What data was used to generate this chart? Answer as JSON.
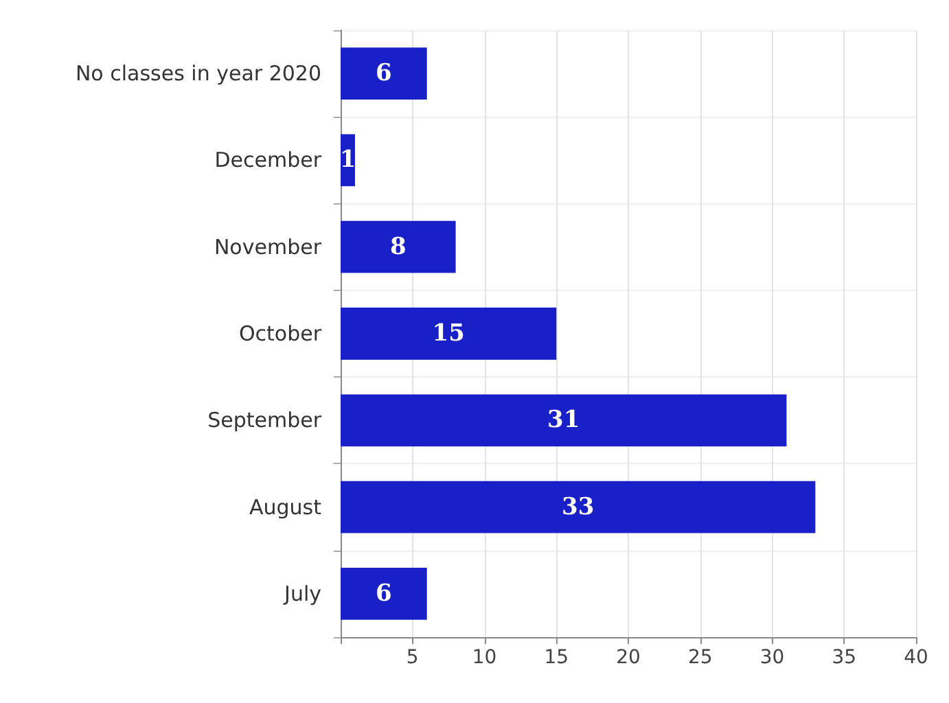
{
  "chart_data": {
    "type": "bar",
    "orientation": "horizontal",
    "categories": [
      "No classes in year 2020",
      "December",
      "November",
      "October",
      "September",
      "August",
      "July"
    ],
    "values": [
      6,
      1,
      8,
      15,
      31,
      33,
      6
    ],
    "color": "#1a20c8",
    "xlim": [
      0,
      40
    ],
    "xticks": [
      {
        "value": 0,
        "label": null
      },
      5,
      10,
      15,
      20,
      25,
      30,
      35,
      40
    ],
    "grid": true,
    "data_labels": true
  }
}
